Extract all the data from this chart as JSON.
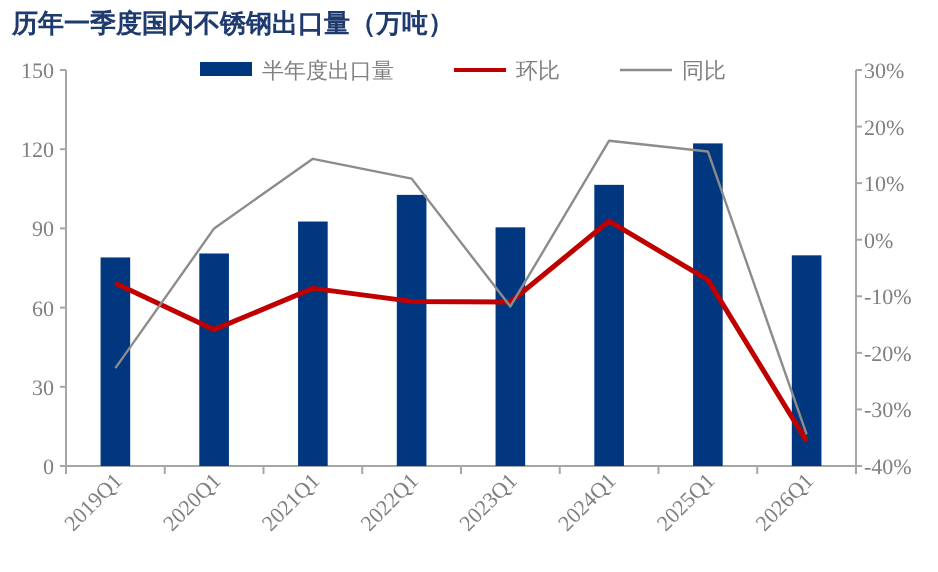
{
  "chart_data": {
    "type": "bar",
    "title": "历年一季度国内不锈钢出口量（万吨）",
    "categories": [
      "2019Q1",
      "2020Q1",
      "2021Q1",
      "2022Q1",
      "2023Q1",
      "2024Q1",
      "2025Q1",
      "2026Q1"
    ],
    "series": [
      {
        "name": "半年度出口量",
        "color": "#00377f",
        "values": [
          79,
          80.5,
          92.6,
          102.7,
          90.4,
          106.5,
          122.2,
          79.8
        ]
      },
      {
        "name": "环比",
        "type": "line",
        "axis": "y2",
        "color": "#c00000",
        "values": [
          -7.7,
          -15.9,
          -8.6,
          -10.9,
          -11,
          3.3,
          -7.1,
          -35.6
        ]
      },
      {
        "name": "同比",
        "type": "line",
        "axis": "y2",
        "color": "#8c8c8c",
        "values": [
          -22.7,
          2,
          14.3,
          10.8,
          -11.8,
          17.5,
          15.6,
          -34.4
        ]
      }
    ],
    "ylim": [
      0,
      150
    ],
    "yticks": [
      0,
      30,
      60,
      90,
      120,
      150
    ],
    "y2lim": [
      -40,
      30
    ],
    "y2ticks": [
      {
        "value": -40,
        "label": "-40%"
      },
      {
        "value": -30,
        "label": "-30%"
      },
      {
        "value": -20,
        "label": "-20%"
      },
      {
        "value": -10,
        "label": "-10%"
      },
      {
        "value": 0,
        "label": "0%"
      },
      {
        "value": 10,
        "label": "10%"
      },
      {
        "value": 20,
        "label": "20%"
      },
      {
        "value": 30,
        "label": "30%"
      }
    ],
    "legend": "top",
    "grid": false
  }
}
